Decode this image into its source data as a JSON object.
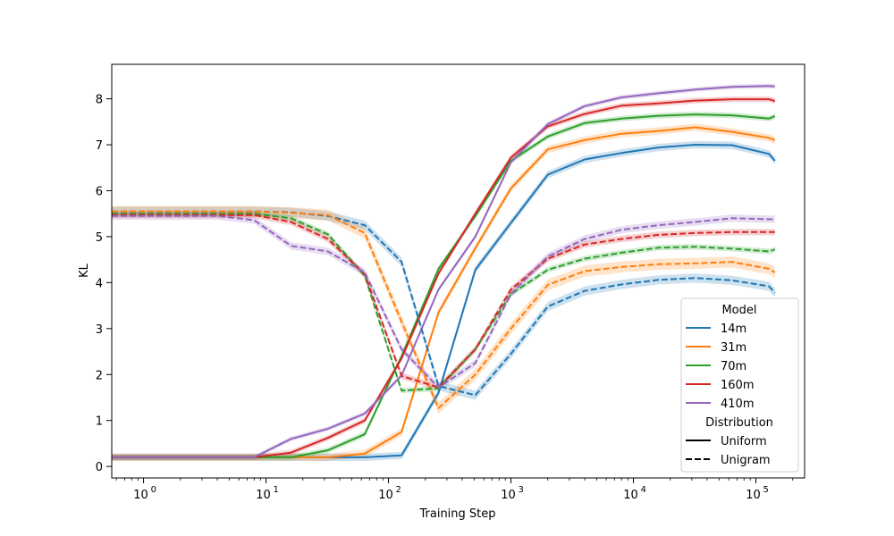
{
  "chart_data": {
    "type": "line",
    "title": "",
    "xlabel": "Training Step",
    "ylabel": "KL",
    "xscale": "log",
    "xlim": [
      0.55,
      250000
    ],
    "ylim": [
      -0.25,
      8.75
    ],
    "grid": false,
    "legend_placement": "lower-right",
    "x_ticks": [
      {
        "value": 1,
        "label": "10",
        "exp": "0"
      },
      {
        "value": 10,
        "label": "10",
        "exp": "1"
      },
      {
        "value": 100,
        "label": "10",
        "exp": "2"
      },
      {
        "value": 1000,
        "label": "10",
        "exp": "3"
      },
      {
        "value": 10000,
        "label": "10",
        "exp": "4"
      },
      {
        "value": 100000,
        "label": "10",
        "exp": "5"
      }
    ],
    "y_ticks": [
      {
        "value": 0,
        "label": "0"
      },
      {
        "value": 1,
        "label": "1"
      },
      {
        "value": 2,
        "label": "2"
      },
      {
        "value": 3,
        "label": "3"
      },
      {
        "value": 4,
        "label": "4"
      },
      {
        "value": 5,
        "label": "5"
      },
      {
        "value": 6,
        "label": "6"
      },
      {
        "value": 7,
        "label": "7"
      },
      {
        "value": 8,
        "label": "8"
      }
    ],
    "x": [
      0.55,
      1,
      2,
      4,
      8,
      16,
      32,
      64,
      128,
      256,
      512,
      1000,
      2000,
      4000,
      8000,
      16000,
      32000,
      64000,
      128000,
      143000
    ],
    "legend": {
      "model_title": "Model",
      "distribution_title": "Distribution",
      "models": [
        {
          "name": "14m",
          "color": "#1f77b4"
        },
        {
          "name": "31m",
          "color": "#ff7f0e"
        },
        {
          "name": "70m",
          "color": "#2ca02c"
        },
        {
          "name": "160m",
          "color": "#d62728"
        },
        {
          "name": "410m",
          "color": "#9467bd"
        }
      ],
      "distributions": [
        {
          "name": "Uniform",
          "dash": "solid"
        },
        {
          "name": "Unigram",
          "dash": "dashed"
        }
      ]
    },
    "series": [
      {
        "model": "14m",
        "distribution": "Uniform",
        "color": "#1f77b4",
        "dash": "solid",
        "band": 0.08,
        "values": [
          0.2,
          0.2,
          0.2,
          0.2,
          0.2,
          0.2,
          0.2,
          0.2,
          0.24,
          1.6,
          4.28,
          5.3,
          6.35,
          6.68,
          6.82,
          6.94,
          7.0,
          6.99,
          6.8,
          6.65
        ]
      },
      {
        "model": "31m",
        "distribution": "Uniform",
        "color": "#ff7f0e",
        "dash": "solid",
        "band": 0.08,
        "values": [
          0.2,
          0.2,
          0.2,
          0.2,
          0.2,
          0.2,
          0.2,
          0.28,
          0.75,
          3.35,
          4.75,
          6.05,
          6.9,
          7.1,
          7.24,
          7.3,
          7.38,
          7.28,
          7.15,
          7.1
        ]
      },
      {
        "model": "70m",
        "distribution": "Uniform",
        "color": "#2ca02c",
        "dash": "solid",
        "band": 0.06,
        "values": [
          0.2,
          0.2,
          0.2,
          0.2,
          0.2,
          0.2,
          0.35,
          0.7,
          2.4,
          4.3,
          5.45,
          6.65,
          7.18,
          7.47,
          7.57,
          7.63,
          7.66,
          7.64,
          7.57,
          7.62
        ]
      },
      {
        "model": "160m",
        "distribution": "Uniform",
        "color": "#d62728",
        "dash": "solid",
        "band": 0.06,
        "values": [
          0.2,
          0.2,
          0.2,
          0.2,
          0.2,
          0.3,
          0.62,
          1.0,
          2.35,
          4.2,
          5.5,
          6.72,
          7.4,
          7.67,
          7.85,
          7.9,
          7.96,
          7.99,
          7.99,
          7.95
        ]
      },
      {
        "model": "410m",
        "distribution": "Uniform",
        "color": "#9467bd",
        "dash": "solid",
        "band": 0.05,
        "values": [
          0.2,
          0.2,
          0.2,
          0.2,
          0.2,
          0.6,
          0.82,
          1.15,
          1.98,
          3.85,
          5.0,
          6.62,
          7.45,
          7.84,
          8.03,
          8.12,
          8.2,
          8.26,
          8.28,
          8.27
        ]
      },
      {
        "model": "14m",
        "distribution": "Unigram",
        "color": "#1f77b4",
        "dash": "dashed",
        "band": 0.1,
        "values": [
          5.55,
          5.55,
          5.55,
          5.55,
          5.55,
          5.53,
          5.45,
          5.25,
          4.45,
          1.75,
          1.55,
          2.45,
          3.48,
          3.82,
          3.96,
          4.06,
          4.1,
          4.05,
          3.92,
          3.78
        ]
      },
      {
        "model": "31m",
        "distribution": "Unigram",
        "color": "#ff7f0e",
        "dash": "dashed",
        "band": 0.12,
        "values": [
          5.55,
          5.55,
          5.55,
          5.55,
          5.55,
          5.52,
          5.47,
          5.08,
          3.15,
          1.27,
          2.0,
          3.0,
          3.95,
          4.25,
          4.34,
          4.4,
          4.42,
          4.45,
          4.3,
          4.22
        ]
      },
      {
        "model": "70m",
        "distribution": "Unigram",
        "color": "#2ca02c",
        "dash": "dashed",
        "band": 0.06,
        "values": [
          5.5,
          5.5,
          5.5,
          5.5,
          5.5,
          5.4,
          5.05,
          4.15,
          1.65,
          1.7,
          2.55,
          3.75,
          4.28,
          4.52,
          4.65,
          4.76,
          4.78,
          4.74,
          4.68,
          4.72
        ]
      },
      {
        "model": "160m",
        "distribution": "Unigram",
        "color": "#d62728",
        "dash": "dashed",
        "band": 0.07,
        "values": [
          5.47,
          5.47,
          5.47,
          5.47,
          5.47,
          5.32,
          4.95,
          4.18,
          1.97,
          1.72,
          2.55,
          3.85,
          4.52,
          4.83,
          4.95,
          5.04,
          5.08,
          5.1,
          5.1,
          5.1
        ]
      },
      {
        "model": "410m",
        "distribution": "Unigram",
        "color": "#9467bd",
        "dash": "dashed",
        "band": 0.08,
        "values": [
          5.45,
          5.45,
          5.45,
          5.45,
          5.36,
          4.8,
          4.68,
          4.22,
          2.55,
          1.72,
          2.25,
          3.75,
          4.57,
          4.95,
          5.15,
          5.25,
          5.32,
          5.4,
          5.38,
          5.38
        ]
      }
    ]
  }
}
